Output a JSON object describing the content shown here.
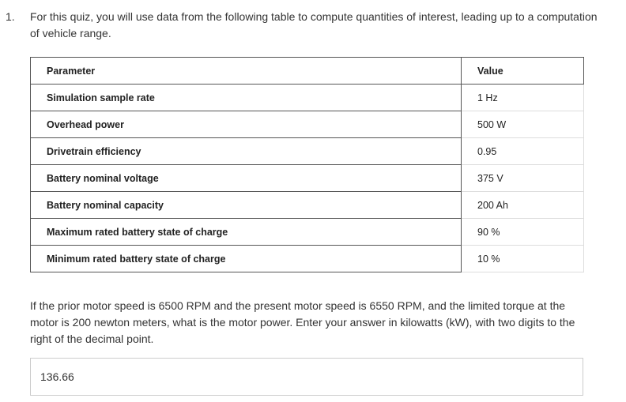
{
  "quiz": {
    "number": "1.",
    "intro": "For this quiz, you will use data from the following table to compute quantities of interest, leading up to a computation of vehicle range.",
    "table": {
      "headers": [
        "Parameter",
        "Value"
      ],
      "rows": [
        {
          "param": "Simulation sample rate",
          "value": "1 Hz"
        },
        {
          "param": "Overhead power",
          "value": "500 W"
        },
        {
          "param": "Drivetrain efficiency",
          "value": "0.95"
        },
        {
          "param": "Battery nominal voltage",
          "value": "375 V"
        },
        {
          "param": "Battery nominal capacity",
          "value": "200 Ah"
        },
        {
          "param": "Maximum rated battery state of charge",
          "value": "90 %"
        },
        {
          "param": "Minimum rated battery state of charge",
          "value": "10 %"
        }
      ]
    },
    "question": "If the prior motor speed is 6500 RPM and the present motor speed is 6550 RPM, and the limited torque at the motor is 200 newton meters, what is the motor power. Enter your answer in kilowatts (kW), with two digits to the right of the decimal point.",
    "answer_value": "136.66"
  }
}
